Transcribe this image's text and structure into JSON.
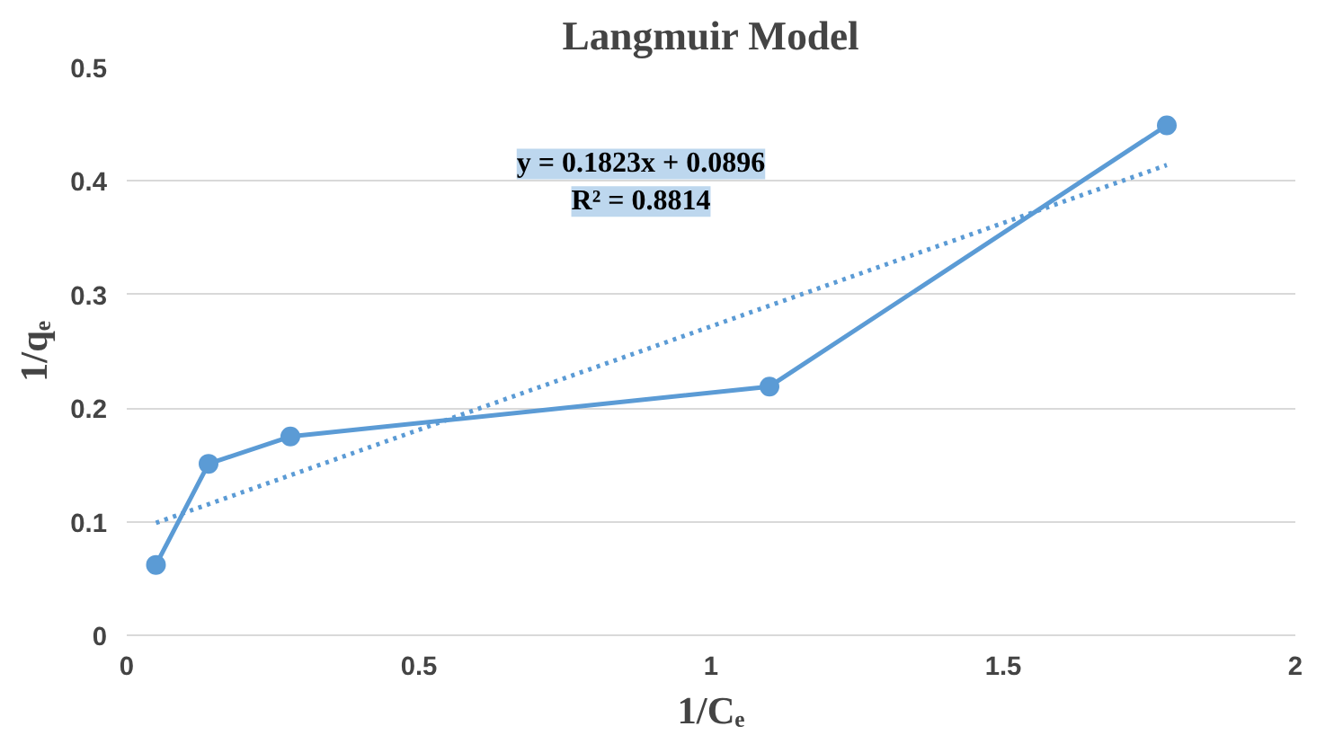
{
  "chart_data": {
    "type": "line",
    "title": "Langmuir Model",
    "xlabel": "1/Cₑ",
    "ylabel": "1/qₑ",
    "xlim": [
      0,
      2
    ],
    "xticks": [
      0,
      0.5,
      1,
      1.5,
      2
    ],
    "ylim": [
      0,
      0.5
    ],
    "yticks": [
      0,
      0.1,
      0.2,
      0.3,
      0.4,
      0.5
    ],
    "grid": "y",
    "series": [
      {
        "color": "#5b9bd5",
        "x": [
          0.05,
          0.14,
          0.28,
          1.1,
          1.78
        ],
        "values": [
          0.062,
          0.151,
          0.175,
          0.219,
          0.449
        ],
        "marker": "circle",
        "line_style": "solid"
      },
      {
        "type": "line",
        "color": "#5b9bd5",
        "x": [
          0.05,
          1.78
        ],
        "values": [
          0.099,
          0.414
        ],
        "marker": "none",
        "line_style": "dotted"
      }
    ],
    "annotations": [
      "y = 0.1823x + 0.0896",
      "R² = 0.8814"
    ]
  }
}
